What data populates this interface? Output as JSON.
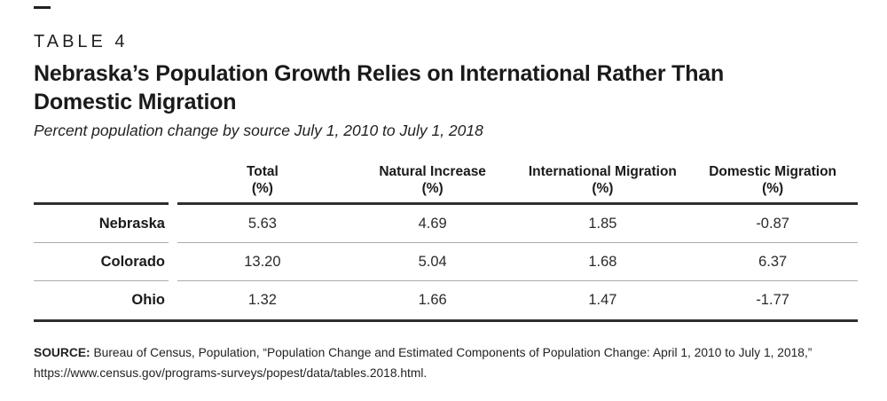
{
  "meta": {
    "table_label": "TABLE 4"
  },
  "title": {
    "line1": "Nebraska’s Population Growth Relies on International Rather Than",
    "line2": "Domestic Migration",
    "subtitle": "Percent population change by source July 1, 2010 to July 1, 2018"
  },
  "table": {
    "columns": [
      {
        "label": "Total",
        "unit": "(%)"
      },
      {
        "label": "Natural Increase",
        "unit": "(%)"
      },
      {
        "label": "International Migration",
        "unit": "(%)"
      },
      {
        "label": "Domestic Migration",
        "unit": "(%)"
      }
    ],
    "rows": [
      {
        "state": "Nebraska",
        "values": [
          "5.63",
          "4.69",
          "1.85",
          "-0.87"
        ]
      },
      {
        "state": "Colorado",
        "values": [
          "13.20",
          "5.04",
          "1.68",
          "6.37"
        ]
      },
      {
        "state": "Ohio",
        "values": [
          "1.32",
          "1.66",
          "1.47",
          "-1.77"
        ]
      }
    ]
  },
  "source": {
    "label": "SOURCE:",
    "text": " Bureau of Census, Population, “Population Change and Estimated Components of Population Change: April 1, 2010 to July 1, 2018,” https://www.census.gov/programs-surveys/popest/data/tables.2018.html."
  },
  "colors": {
    "rule_dark": "#2f2f2f",
    "rule_light": "#ababab",
    "text": "#231f20"
  }
}
